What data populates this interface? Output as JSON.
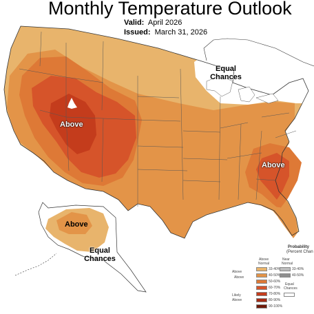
{
  "title": "Monthly Temperature Outlook",
  "valid_label": "Valid:",
  "valid_value": "April 2026",
  "issued_label": "Issued:",
  "issued_value": "March 31, 2026",
  "map_labels": {
    "above_west": "Above",
    "above_southeast": "Above",
    "above_alaska": "Above",
    "equal_chances_ne_line1": "Equal",
    "equal_chances_ne_line2": "Chances",
    "equal_chances_ak_line1": "Equal",
    "equal_chances_ak_line2": "Chances"
  },
  "legend": {
    "title_line1": "Probability",
    "title_line2": "(Percent Chan",
    "above_header_line1": "Above",
    "above_header_line2": "Normal",
    "near_header_line1": "Near",
    "near_header_line2": "Normal",
    "likely_above_top": "Above",
    "likely_above_label": "Likely",
    "likely_above_bottom": "Above",
    "near_values": [
      "33-40%",
      "40-50%"
    ],
    "equal_chances_line1": "Equal",
    "equal_chances_line2": "Chances",
    "above_values": [
      "33-40%",
      "40-50%",
      "50-60%",
      "60-70%",
      "70-80%",
      "80-90%",
      "90-100%"
    ]
  },
  "colors": {
    "above_33_40": "#e8b46c",
    "above_40_50": "#e39448",
    "above_50_60": "#de7936",
    "above_60_70": "#d6542a",
    "above_70_80": "#c43c1c",
    "above_80_90": "#a52a14",
    "above_90_100": "#6e1a0a",
    "near_33_40": "#bdbdbd",
    "near_40_50": "#8f8f8f",
    "equal_chances": "#ffffff"
  }
}
